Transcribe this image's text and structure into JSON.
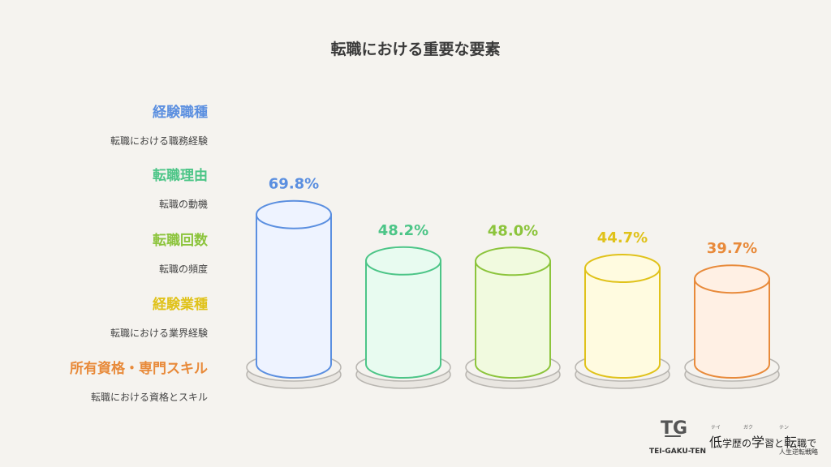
{
  "title": "転職における重要な要素",
  "chart_data": {
    "type": "bar",
    "title": "転職における重要な要素",
    "categories": [
      "経験職種",
      "転職理由",
      "転職回数",
      "経験業種",
      "所有資格・専門スキル"
    ],
    "descriptions": [
      "転職における職務経験",
      "転職の動機",
      "転職の頻度",
      "転職における業界経験",
      "転職における資格とスキル"
    ],
    "values": [
      69.8,
      48.2,
      48.0,
      44.7,
      39.7
    ],
    "value_labels": [
      "69.8%",
      "48.2%",
      "48.0%",
      "44.7%",
      "39.7%"
    ],
    "colors": [
      "#5b8fe0",
      "#4cc587",
      "#8cc43c",
      "#e0c21a",
      "#e88a3a"
    ],
    "fills": [
      "#eef3ff",
      "#e8fbf0",
      "#f1fadf",
      "#fffbe0",
      "#fff0e4"
    ],
    "ylim": [
      0,
      100
    ]
  },
  "logo": {
    "brand": "TEI-GAKU-TEN",
    "ruby": [
      "テイ",
      "ガク",
      "テン"
    ],
    "main_1": "低",
    "main_2": "学歴の",
    "main_3": "学",
    "main_4": "習と",
    "main_5": "転",
    "main_6": "職で",
    "sub": "人生逆転戦略"
  }
}
